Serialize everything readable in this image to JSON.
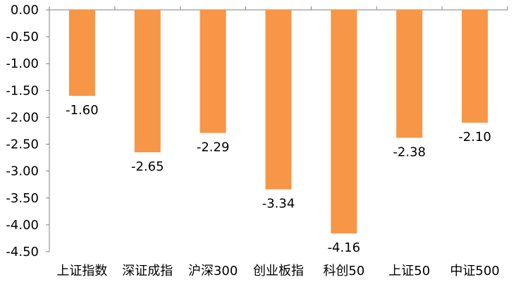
{
  "chart_data": {
    "type": "bar",
    "categories": [
      "上证指数",
      "深证成指",
      "沪深300",
      "创业板指",
      "科创50",
      "上证50",
      "中证500"
    ],
    "values": [
      -1.6,
      -2.65,
      -2.29,
      -3.34,
      -4.16,
      -2.38,
      -2.1
    ],
    "data_labels": [
      "-1.60",
      "-2.65",
      "-2.29",
      "-3.34",
      "-4.16",
      "-2.38",
      "-2.10"
    ],
    "y_ticks": [
      0,
      -0.5,
      -1,
      -1.5,
      -2,
      -2.5,
      -3,
      -3.5,
      -4,
      -4.5
    ],
    "y_tick_labels": [
      "0.00",
      "-0.50",
      "-1.00",
      "-1.50",
      "-2.00",
      "-2.50",
      "-3.00",
      "-3.50",
      "-4.00",
      "-4.50"
    ],
    "ylim": [
      -4.5,
      0
    ],
    "title": "",
    "xlabel": "",
    "ylabel": "",
    "grid": false,
    "legend": "none",
    "bar_color": "#F79646",
    "axis_color": "#808080"
  }
}
